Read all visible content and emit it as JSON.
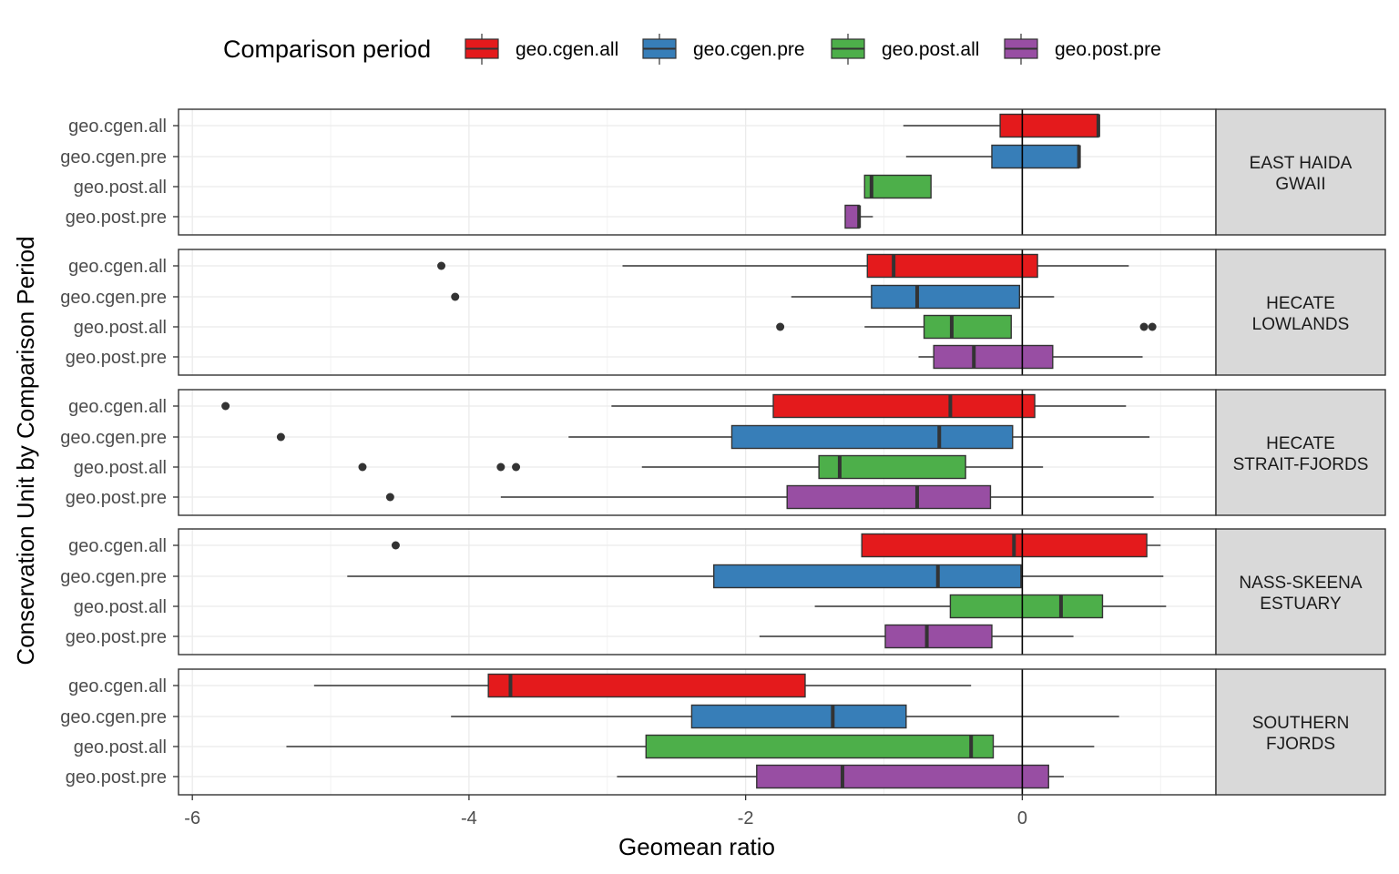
{
  "chart_data": {
    "type": "boxplot",
    "orientation": "horizontal",
    "xlabel": "Geomean ratio",
    "ylabel": "Conservation Unit by Comparison Period",
    "xlim": [
      -6.1,
      1.4
    ],
    "x_ticks": [
      -6,
      -4,
      -2,
      0
    ],
    "reference_line_x": 0,
    "grid": true,
    "legend": {
      "title": "Comparison period",
      "position": "top",
      "entries": [
        {
          "label": "geo.cgen.all",
          "color": "#e41a1c"
        },
        {
          "label": "geo.cgen.pre",
          "color": "#377eb8"
        },
        {
          "label": "geo.post.all",
          "color": "#4daf4a"
        },
        {
          "label": "geo.post.pre",
          "color": "#984ea3"
        }
      ]
    },
    "categories": [
      "geo.cgen.all",
      "geo.cgen.pre",
      "geo.post.all",
      "geo.post.pre"
    ],
    "panels": [
      {
        "label_lines": [
          "EAST HAIDA",
          "GWAII"
        ],
        "boxes": [
          {
            "category": "geo.cgen.all",
            "whisker_low": -0.86,
            "q1": -0.16,
            "median": 0.55,
            "q3": 0.55,
            "whisker_high": 0.56,
            "outliers": []
          },
          {
            "category": "geo.cgen.pre",
            "whisker_low": -0.84,
            "q1": -0.22,
            "median": 0.41,
            "q3": 0.41,
            "whisker_high": 0.42,
            "outliers": []
          },
          {
            "category": "geo.post.all",
            "whisker_low": -1.14,
            "q1": -1.14,
            "median": -1.09,
            "q3": -0.66,
            "whisker_high": -0.66,
            "outliers": []
          },
          {
            "category": "geo.post.pre",
            "whisker_low": -1.28,
            "q1": -1.28,
            "median": -1.18,
            "q3": -1.18,
            "whisker_high": -1.08,
            "outliers": []
          }
        ]
      },
      {
        "label_lines": [
          "HECATE",
          "LOWLANDS"
        ],
        "boxes": [
          {
            "category": "geo.cgen.all",
            "whisker_low": -2.89,
            "q1": -1.12,
            "median": -0.93,
            "q3": 0.11,
            "whisker_high": 0.77,
            "outliers": [
              -4.2
            ]
          },
          {
            "category": "geo.cgen.pre",
            "whisker_low": -1.67,
            "q1": -1.09,
            "median": -0.76,
            "q3": -0.02,
            "whisker_high": 0.23,
            "outliers": [
              -4.1
            ]
          },
          {
            "category": "geo.post.all",
            "whisker_low": -1.14,
            "q1": -0.71,
            "median": -0.51,
            "q3": -0.08,
            "whisker_high": -0.08,
            "outliers": [
              -1.75,
              0.88,
              0.94
            ]
          },
          {
            "category": "geo.post.pre",
            "whisker_low": -0.75,
            "q1": -0.64,
            "median": -0.35,
            "q3": 0.22,
            "whisker_high": 0.87,
            "outliers": []
          }
        ]
      },
      {
        "label_lines": [
          "HECATE",
          "STRAIT-FJORDS"
        ],
        "boxes": [
          {
            "category": "geo.cgen.all",
            "whisker_low": -2.97,
            "q1": -1.8,
            "median": -0.52,
            "q3": 0.09,
            "whisker_high": 0.75,
            "outliers": [
              -5.76
            ]
          },
          {
            "category": "geo.cgen.pre",
            "whisker_low": -3.28,
            "q1": -2.1,
            "median": -0.6,
            "q3": -0.07,
            "whisker_high": 0.92,
            "outliers": [
              -5.36
            ]
          },
          {
            "category": "geo.post.all",
            "whisker_low": -2.75,
            "q1": -1.47,
            "median": -1.32,
            "q3": -0.41,
            "whisker_high": 0.15,
            "outliers": [
              -4.77,
              -3.77,
              -3.66
            ]
          },
          {
            "category": "geo.post.pre",
            "whisker_low": -3.77,
            "q1": -1.7,
            "median": -0.76,
            "q3": -0.23,
            "whisker_high": 0.95,
            "outliers": [
              -4.57
            ]
          }
        ]
      },
      {
        "label_lines": [
          "NASS-SKEENA",
          "ESTUARY"
        ],
        "boxes": [
          {
            "category": "geo.cgen.all",
            "whisker_low": -1.16,
            "q1": -1.16,
            "median": -0.06,
            "q3": 0.9,
            "whisker_high": 1.0,
            "outliers": [
              -4.53
            ]
          },
          {
            "category": "geo.cgen.pre",
            "whisker_low": -4.88,
            "q1": -2.23,
            "median": -0.61,
            "q3": -0.01,
            "whisker_high": 1.02,
            "outliers": []
          },
          {
            "category": "geo.post.all",
            "whisker_low": -1.5,
            "q1": -0.52,
            "median": 0.28,
            "q3": 0.58,
            "whisker_high": 1.04,
            "outliers": []
          },
          {
            "category": "geo.post.pre",
            "whisker_low": -1.9,
            "q1": -0.99,
            "median": -0.69,
            "q3": -0.22,
            "whisker_high": 0.37,
            "outliers": []
          }
        ]
      },
      {
        "label_lines": [
          "SOUTHERN",
          "FJORDS"
        ],
        "boxes": [
          {
            "category": "geo.cgen.all",
            "whisker_low": -5.12,
            "q1": -3.86,
            "median": -3.7,
            "q3": -1.57,
            "whisker_high": -0.37,
            "outliers": []
          },
          {
            "category": "geo.cgen.pre",
            "whisker_low": -4.13,
            "q1": -2.39,
            "median": -1.37,
            "q3": -0.84,
            "whisker_high": 0.7,
            "outliers": []
          },
          {
            "category": "geo.post.all",
            "whisker_low": -5.32,
            "q1": -2.72,
            "median": -0.37,
            "q3": -0.21,
            "whisker_high": 0.52,
            "outliers": []
          },
          {
            "category": "geo.post.pre",
            "whisker_low": -2.93,
            "q1": -1.92,
            "median": -1.3,
            "q3": 0.19,
            "whisker_high": 0.3,
            "outliers": []
          }
        ]
      }
    ]
  }
}
